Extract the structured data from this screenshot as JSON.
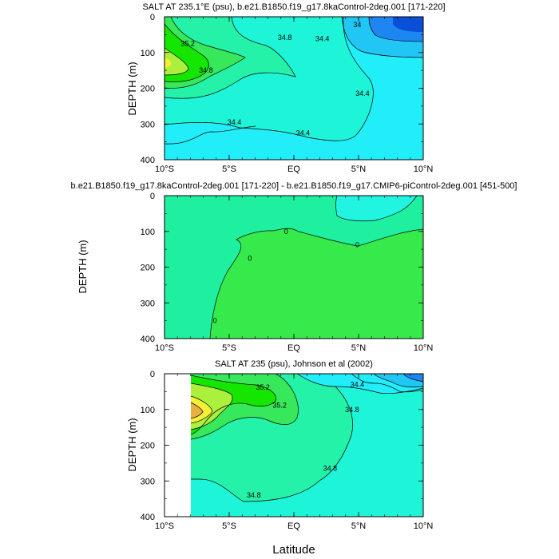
{
  "colors": {
    "salt_lt_34_0": "#0a4fd8",
    "salt_34_0": "#1e86f0",
    "salt_34_2": "#22c6f5",
    "salt_34_4": "#22eefa",
    "salt_34_6": "#1ef4d8",
    "salt_34_8": "#24f2a8",
    "salt_35_0": "#37e85a",
    "salt_35_2": "#14e600",
    "salt_35_4": "#aaf03c",
    "salt_35_6": "#f4f035",
    "diff_pos": "#1ef0a0",
    "diff_neg": "#22f4e2",
    "diff_pos2": "#36ea4c",
    "contour_line": "#000000"
  },
  "chart_data": [
    {
      "type": "contour",
      "title": "SALT AT 235.1°E (psu), b.e21.B1850.f19_g17.8kaControl-2deg.001 [171-220]",
      "ylabel": "DEPTH (m)",
      "xlabel": "",
      "x_ticks": [
        "10°S",
        "5°S",
        "EQ",
        "5°N",
        "10°N"
      ],
      "y_ticks": [
        "0",
        "100",
        "200",
        "300",
        "400"
      ],
      "xlim": [
        -10,
        10
      ],
      "ylim": [
        400,
        0
      ],
      "contour_labels": [
        {
          "text": "35.2",
          "lat": -8.2,
          "depth": 75
        },
        {
          "text": "34.8",
          "lat": -6.8,
          "depth": 150
        },
        {
          "text": "34.8",
          "lat": -0.7,
          "depth": 58
        },
        {
          "text": "34.4",
          "lat": 2.2,
          "depth": 62
        },
        {
          "text": "34",
          "lat": 4.9,
          "depth": 22
        },
        {
          "text": "34.4",
          "lat": -4.6,
          "depth": 295
        },
        {
          "text": "34.4",
          "lat": 0.7,
          "depth": 325
        },
        {
          "text": "34.4",
          "lat": 5.3,
          "depth": 215
        }
      ]
    },
    {
      "type": "contour",
      "title": "b.e21.B1850.f19_g17.8kaControl-2deg.001 [171-220] - b.e21.B1850.f19_g17.CMIP6-piControl-2deg.001 [451-500]",
      "ylabel": "DEPTH (m)",
      "xlabel": "",
      "x_ticks": [
        "10°S",
        "5°S",
        "EQ",
        "5°N",
        "10°N"
      ],
      "y_ticks": [
        "0",
        "100",
        "200",
        "300",
        "400"
      ],
      "xlim": [
        -10,
        10
      ],
      "ylim": [
        400,
        0
      ],
      "contour_labels": [
        {
          "text": "0",
          "lat": -0.6,
          "depth": 100
        },
        {
          "text": "0",
          "lat": 4.9,
          "depth": 137
        },
        {
          "text": "0",
          "lat": -3.4,
          "depth": 175
        },
        {
          "text": "0",
          "lat": -6.1,
          "depth": 350
        }
      ]
    },
    {
      "type": "contour",
      "title": "SALT AT 235 (psu), Johnson et al (2002)",
      "ylabel": "DEPTH (m)",
      "xlabel": "Latitude",
      "x_ticks": [
        "10°S",
        "5°S",
        "EQ",
        "5°N",
        "10°N"
      ],
      "y_ticks": [
        "0",
        "100",
        "200",
        "300",
        "400"
      ],
      "xlim": [
        -10,
        10
      ],
      "ylim": [
        400,
        0
      ],
      "contour_labels": [
        {
          "text": "35.2",
          "lat": -2.4,
          "depth": 38
        },
        {
          "text": "35.2",
          "lat": -1.1,
          "depth": 88
        },
        {
          "text": "34.4",
          "lat": 4.9,
          "depth": 30
        },
        {
          "text": "34.8",
          "lat": 4.5,
          "depth": 100
        },
        {
          "text": "34.8",
          "lat": 2.8,
          "depth": 265
        },
        {
          "text": "34.8",
          "lat": -3.1,
          "depth": 340
        }
      ]
    }
  ]
}
